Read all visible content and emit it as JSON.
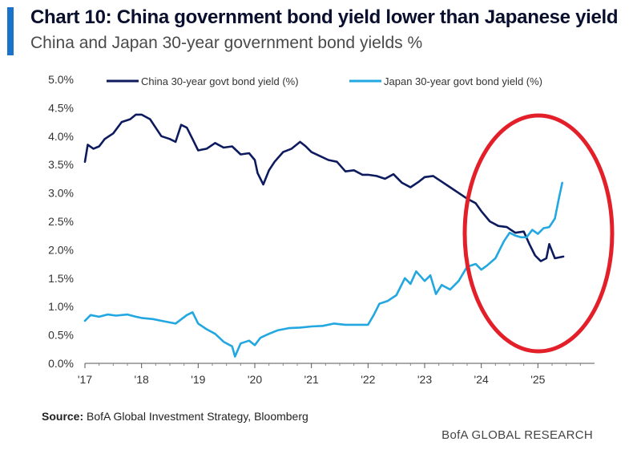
{
  "header": {
    "title": "Chart 10: China government bond yield lower than Japanese yield",
    "subtitle": "China and Japan 30-year government bond yields %"
  },
  "footer": {
    "source_label": "Source:",
    "source_text": " BofA Global Investment Strategy, Bloomberg",
    "brand": "BofA GLOBAL RESEARCH"
  },
  "colors": {
    "china": "#0d1b5e",
    "japan": "#22a7e0",
    "highlight": "#e3202a",
    "accent": "#1a73c8"
  },
  "chart_data": {
    "type": "line",
    "title": "China and Japan 30-year government bond yields %",
    "xlabel": "",
    "ylabel": "",
    "xlim": [
      2017.0,
      2026.0
    ],
    "ylim": [
      0.0,
      5.0
    ],
    "x_ticks": [
      2017,
      2018,
      2019,
      2020,
      2021,
      2022,
      2023,
      2024,
      2025
    ],
    "x_tick_labels": [
      "'17",
      "'18",
      "'19",
      "'20",
      "'21",
      "'22",
      "'23",
      "'24",
      "'25"
    ],
    "y_ticks": [
      0,
      0.5,
      1.0,
      1.5,
      2.0,
      2.5,
      3.0,
      3.5,
      4.0,
      4.5,
      5.0
    ],
    "y_tick_labels": [
      "0.0%",
      "0.5%",
      "1.0%",
      "1.5%",
      "2.0%",
      "2.5%",
      "3.0%",
      "3.5%",
      "4.0%",
      "4.5%",
      "5.0%"
    ],
    "legend_position": "top",
    "annotation": "red ellipse highlighting the 2024–2025 crossover",
    "series": [
      {
        "name": "China 30-year govt bond yield (%)",
        "points": [
          [
            2017.0,
            3.55
          ],
          [
            2017.05,
            3.85
          ],
          [
            2017.15,
            3.78
          ],
          [
            2017.25,
            3.82
          ],
          [
            2017.35,
            3.95
          ],
          [
            2017.5,
            4.05
          ],
          [
            2017.65,
            4.25
          ],
          [
            2017.8,
            4.3
          ],
          [
            2017.9,
            4.38
          ],
          [
            2018.0,
            4.38
          ],
          [
            2018.15,
            4.3
          ],
          [
            2018.25,
            4.15
          ],
          [
            2018.35,
            4.0
          ],
          [
            2018.5,
            3.95
          ],
          [
            2018.6,
            3.9
          ],
          [
            2018.7,
            4.2
          ],
          [
            2018.8,
            4.15
          ],
          [
            2018.9,
            3.95
          ],
          [
            2019.0,
            3.75
          ],
          [
            2019.15,
            3.78
          ],
          [
            2019.3,
            3.88
          ],
          [
            2019.45,
            3.8
          ],
          [
            2019.6,
            3.82
          ],
          [
            2019.75,
            3.68
          ],
          [
            2019.9,
            3.7
          ],
          [
            2020.0,
            3.58
          ],
          [
            2020.05,
            3.35
          ],
          [
            2020.15,
            3.15
          ],
          [
            2020.25,
            3.4
          ],
          [
            2020.35,
            3.55
          ],
          [
            2020.5,
            3.72
          ],
          [
            2020.65,
            3.78
          ],
          [
            2020.8,
            3.9
          ],
          [
            2020.9,
            3.82
          ],
          [
            2021.0,
            3.72
          ],
          [
            2021.15,
            3.65
          ],
          [
            2021.3,
            3.58
          ],
          [
            2021.45,
            3.55
          ],
          [
            2021.6,
            3.38
          ],
          [
            2021.75,
            3.4
          ],
          [
            2021.9,
            3.32
          ],
          [
            2022.0,
            3.32
          ],
          [
            2022.15,
            3.3
          ],
          [
            2022.3,
            3.25
          ],
          [
            2022.45,
            3.33
          ],
          [
            2022.6,
            3.18
          ],
          [
            2022.75,
            3.1
          ],
          [
            2022.9,
            3.2
          ],
          [
            2023.0,
            3.28
          ],
          [
            2023.15,
            3.3
          ],
          [
            2023.3,
            3.2
          ],
          [
            2023.45,
            3.1
          ],
          [
            2023.6,
            3.0
          ],
          [
            2023.75,
            2.9
          ],
          [
            2023.9,
            2.82
          ],
          [
            2024.0,
            2.68
          ],
          [
            2024.15,
            2.5
          ],
          [
            2024.3,
            2.42
          ],
          [
            2024.45,
            2.4
          ],
          [
            2024.6,
            2.3
          ],
          [
            2024.75,
            2.32
          ],
          [
            2024.85,
            2.1
          ],
          [
            2024.95,
            1.9
          ],
          [
            2025.05,
            1.8
          ],
          [
            2025.15,
            1.85
          ],
          [
            2025.2,
            2.1
          ],
          [
            2025.3,
            1.85
          ],
          [
            2025.45,
            1.88
          ]
        ]
      },
      {
        "name": "Japan 30-year govt bond yield (%)",
        "points": [
          [
            2017.0,
            0.75
          ],
          [
            2017.1,
            0.85
          ],
          [
            2017.25,
            0.82
          ],
          [
            2017.4,
            0.86
          ],
          [
            2017.55,
            0.84
          ],
          [
            2017.75,
            0.86
          ],
          [
            2017.9,
            0.82
          ],
          [
            2018.0,
            0.8
          ],
          [
            2018.2,
            0.78
          ],
          [
            2018.4,
            0.74
          ],
          [
            2018.6,
            0.7
          ],
          [
            2018.8,
            0.85
          ],
          [
            2018.9,
            0.9
          ],
          [
            2019.0,
            0.7
          ],
          [
            2019.15,
            0.6
          ],
          [
            2019.3,
            0.52
          ],
          [
            2019.45,
            0.38
          ],
          [
            2019.6,
            0.3
          ],
          [
            2019.65,
            0.12
          ],
          [
            2019.75,
            0.35
          ],
          [
            2019.9,
            0.4
          ],
          [
            2020.0,
            0.32
          ],
          [
            2020.1,
            0.45
          ],
          [
            2020.25,
            0.52
          ],
          [
            2020.4,
            0.58
          ],
          [
            2020.6,
            0.62
          ],
          [
            2020.8,
            0.63
          ],
          [
            2021.0,
            0.65
          ],
          [
            2021.2,
            0.66
          ],
          [
            2021.4,
            0.7
          ],
          [
            2021.6,
            0.68
          ],
          [
            2021.8,
            0.68
          ],
          [
            2022.0,
            0.68
          ],
          [
            2022.1,
            0.85
          ],
          [
            2022.2,
            1.05
          ],
          [
            2022.35,
            1.1
          ],
          [
            2022.5,
            1.2
          ],
          [
            2022.65,
            1.5
          ],
          [
            2022.75,
            1.4
          ],
          [
            2022.85,
            1.62
          ],
          [
            2023.0,
            1.45
          ],
          [
            2023.1,
            1.55
          ],
          [
            2023.2,
            1.22
          ],
          [
            2023.3,
            1.38
          ],
          [
            2023.45,
            1.3
          ],
          [
            2023.6,
            1.45
          ],
          [
            2023.75,
            1.7
          ],
          [
            2023.9,
            1.75
          ],
          [
            2024.0,
            1.65
          ],
          [
            2024.1,
            1.72
          ],
          [
            2024.25,
            1.85
          ],
          [
            2024.4,
            2.15
          ],
          [
            2024.5,
            2.3
          ],
          [
            2024.6,
            2.25
          ],
          [
            2024.7,
            2.22
          ],
          [
            2024.8,
            2.22
          ],
          [
            2024.9,
            2.35
          ],
          [
            2025.0,
            2.28
          ],
          [
            2025.1,
            2.38
          ],
          [
            2025.2,
            2.4
          ],
          [
            2025.3,
            2.55
          ],
          [
            2025.38,
            2.95
          ],
          [
            2025.43,
            3.18
          ]
        ]
      }
    ]
  }
}
